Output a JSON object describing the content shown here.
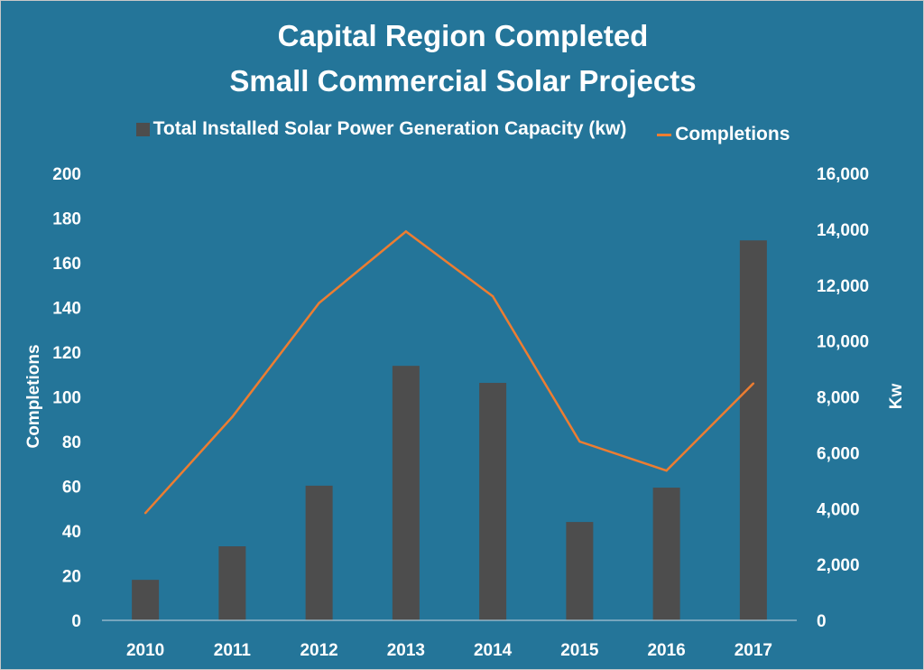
{
  "chart_data": {
    "type": "bar+line",
    "title": "Capital Region Completed Small Commercial Solar Projects",
    "title_lines": [
      "Capital Region Completed",
      "Small Commercial Solar Projects"
    ],
    "categories": [
      "2010",
      "2011",
      "2012",
      "2013",
      "2014",
      "2015",
      "2016",
      "2017"
    ],
    "series": [
      {
        "name": "Total Installed Solar Power Generation Capacity (kw)",
        "type": "bar",
        "axis": "right",
        "color": "#4d4d4d",
        "values": [
          1450,
          2650,
          4820,
          9110,
          8500,
          3520,
          4750,
          13600
        ]
      },
      {
        "name": "Completions",
        "type": "line",
        "axis": "left",
        "color": "#ed7d31",
        "values": [
          48,
          91,
          142,
          174,
          145,
          80,
          67,
          106
        ]
      }
    ],
    "ylabel_left": "Completions",
    "ylabel_right": "Kw",
    "ylim_left": [
      0,
      200
    ],
    "ylim_right": [
      0,
      16000
    ],
    "yticks_left": [
      "0",
      "20",
      "40",
      "60",
      "80",
      "100",
      "120",
      "140",
      "160",
      "180",
      "200"
    ],
    "yticks_right": [
      "0",
      "2,000",
      "4,000",
      "6,000",
      "8,000",
      "10,000",
      "12,000",
      "14,000",
      "16,000"
    ],
    "grid": false,
    "legend_position": "top",
    "background_color": "#247599"
  }
}
